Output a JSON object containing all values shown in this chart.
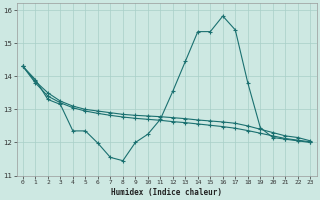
{
  "xlabel": "Humidex (Indice chaleur)",
  "xlim": [
    -0.5,
    23.5
  ],
  "ylim": [
    11,
    16.2
  ],
  "yticks": [
    11,
    12,
    13,
    14,
    15,
    16
  ],
  "xticks": [
    0,
    1,
    2,
    3,
    4,
    5,
    6,
    7,
    8,
    9,
    10,
    11,
    12,
    13,
    14,
    15,
    16,
    17,
    18,
    19,
    20,
    21,
    22,
    23
  ],
  "background_color": "#cde8e2",
  "grid_color": "#a8cfc8",
  "line_color": "#1a7070",
  "line1_x": [
    0,
    1,
    2,
    3,
    4,
    5,
    6,
    7,
    8,
    9,
    10,
    11,
    12,
    13,
    14,
    15,
    16,
    17,
    18,
    19,
    20,
    21,
    22,
    23
  ],
  "line1_y": [
    14.3,
    13.9,
    13.3,
    13.15,
    12.35,
    12.35,
    11.98,
    11.55,
    11.45,
    12.0,
    12.25,
    12.7,
    13.55,
    14.45,
    15.35,
    15.35,
    15.82,
    15.4,
    13.8,
    12.45,
    12.15,
    12.1,
    12.05,
    12.0
  ],
  "line2_x": [
    0,
    1,
    2,
    3,
    4,
    5,
    6,
    7,
    8,
    9,
    10,
    11,
    12,
    13,
    14,
    15,
    16,
    17,
    18,
    19,
    20,
    21,
    22,
    23
  ],
  "line2_y": [
    14.3,
    13.85,
    13.5,
    13.25,
    13.1,
    13.0,
    12.95,
    12.9,
    12.85,
    12.82,
    12.8,
    12.78,
    12.75,
    12.72,
    12.68,
    12.65,
    12.62,
    12.58,
    12.5,
    12.4,
    12.3,
    12.2,
    12.15,
    12.05
  ],
  "line3_x": [
    0,
    1,
    2,
    3,
    4,
    5,
    6,
    7,
    8,
    9,
    10,
    11,
    12,
    13,
    14,
    15,
    16,
    17,
    18,
    19,
    20,
    21,
    22,
    23
  ],
  "line3_y": [
    14.3,
    13.8,
    13.4,
    13.2,
    13.05,
    12.95,
    12.88,
    12.82,
    12.77,
    12.73,
    12.7,
    12.67,
    12.63,
    12.6,
    12.56,
    12.52,
    12.48,
    12.43,
    12.36,
    12.28,
    12.2,
    12.12,
    12.07,
    12.02
  ]
}
